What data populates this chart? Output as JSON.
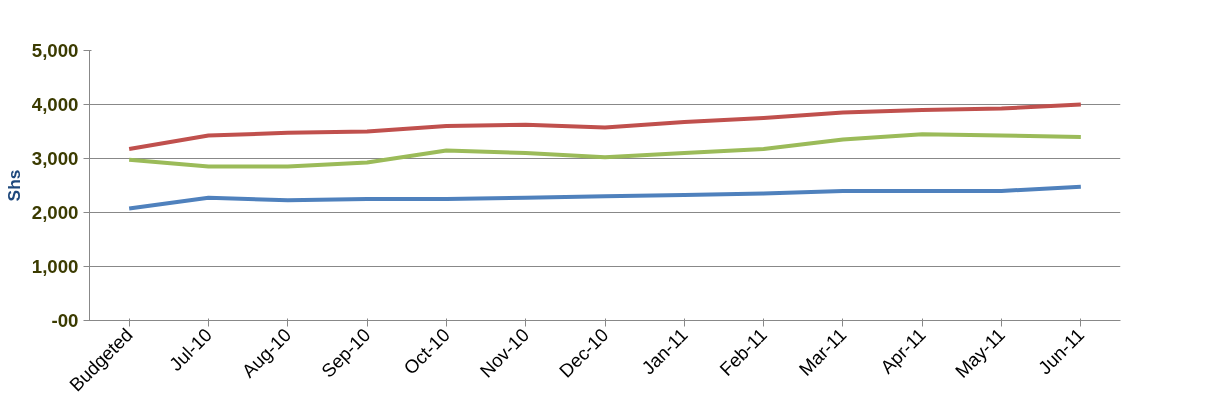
{
  "chart_data": {
    "type": "line",
    "ylabel": "Shs",
    "categories": [
      "Budgeted",
      "Jul-10",
      "Aug-10",
      "Sep-10",
      "Oct-10",
      "Nov-10",
      "Dec-10",
      "Jan-11",
      "Feb-11",
      "Mar-11",
      "Apr-11",
      "May-11",
      "Jun-11"
    ],
    "series": [
      {
        "color": "#c0504d",
        "values": [
          3175,
          3425,
          3475,
          3500,
          3600,
          3625,
          3575,
          3675,
          3750,
          3850,
          3900,
          3925,
          4000
        ]
      },
      {
        "color": "#9bbb59",
        "values": [
          2975,
          2850,
          2850,
          2925,
          3150,
          3100,
          3025,
          3100,
          3175,
          3350,
          3450,
          3425,
          3400
        ]
      },
      {
        "color": "#4f81bd",
        "values": [
          2075,
          2275,
          2225,
          2250,
          2250,
          2275,
          2300,
          2325,
          2350,
          2400,
          2400,
          2400,
          2475
        ]
      }
    ],
    "ylim": [
      0,
      5000
    ],
    "yticks": [
      {
        "value": 0,
        "label": "-00"
      },
      {
        "value": 1000,
        "label": "1,000"
      },
      {
        "value": 2000,
        "label": "2,000"
      },
      {
        "value": 3000,
        "label": "3,000"
      },
      {
        "value": 4000,
        "label": "4,000"
      },
      {
        "value": 5000,
        "label": "5,000"
      }
    ],
    "grid": "y",
    "marker": "none",
    "line_style": "solid"
  }
}
